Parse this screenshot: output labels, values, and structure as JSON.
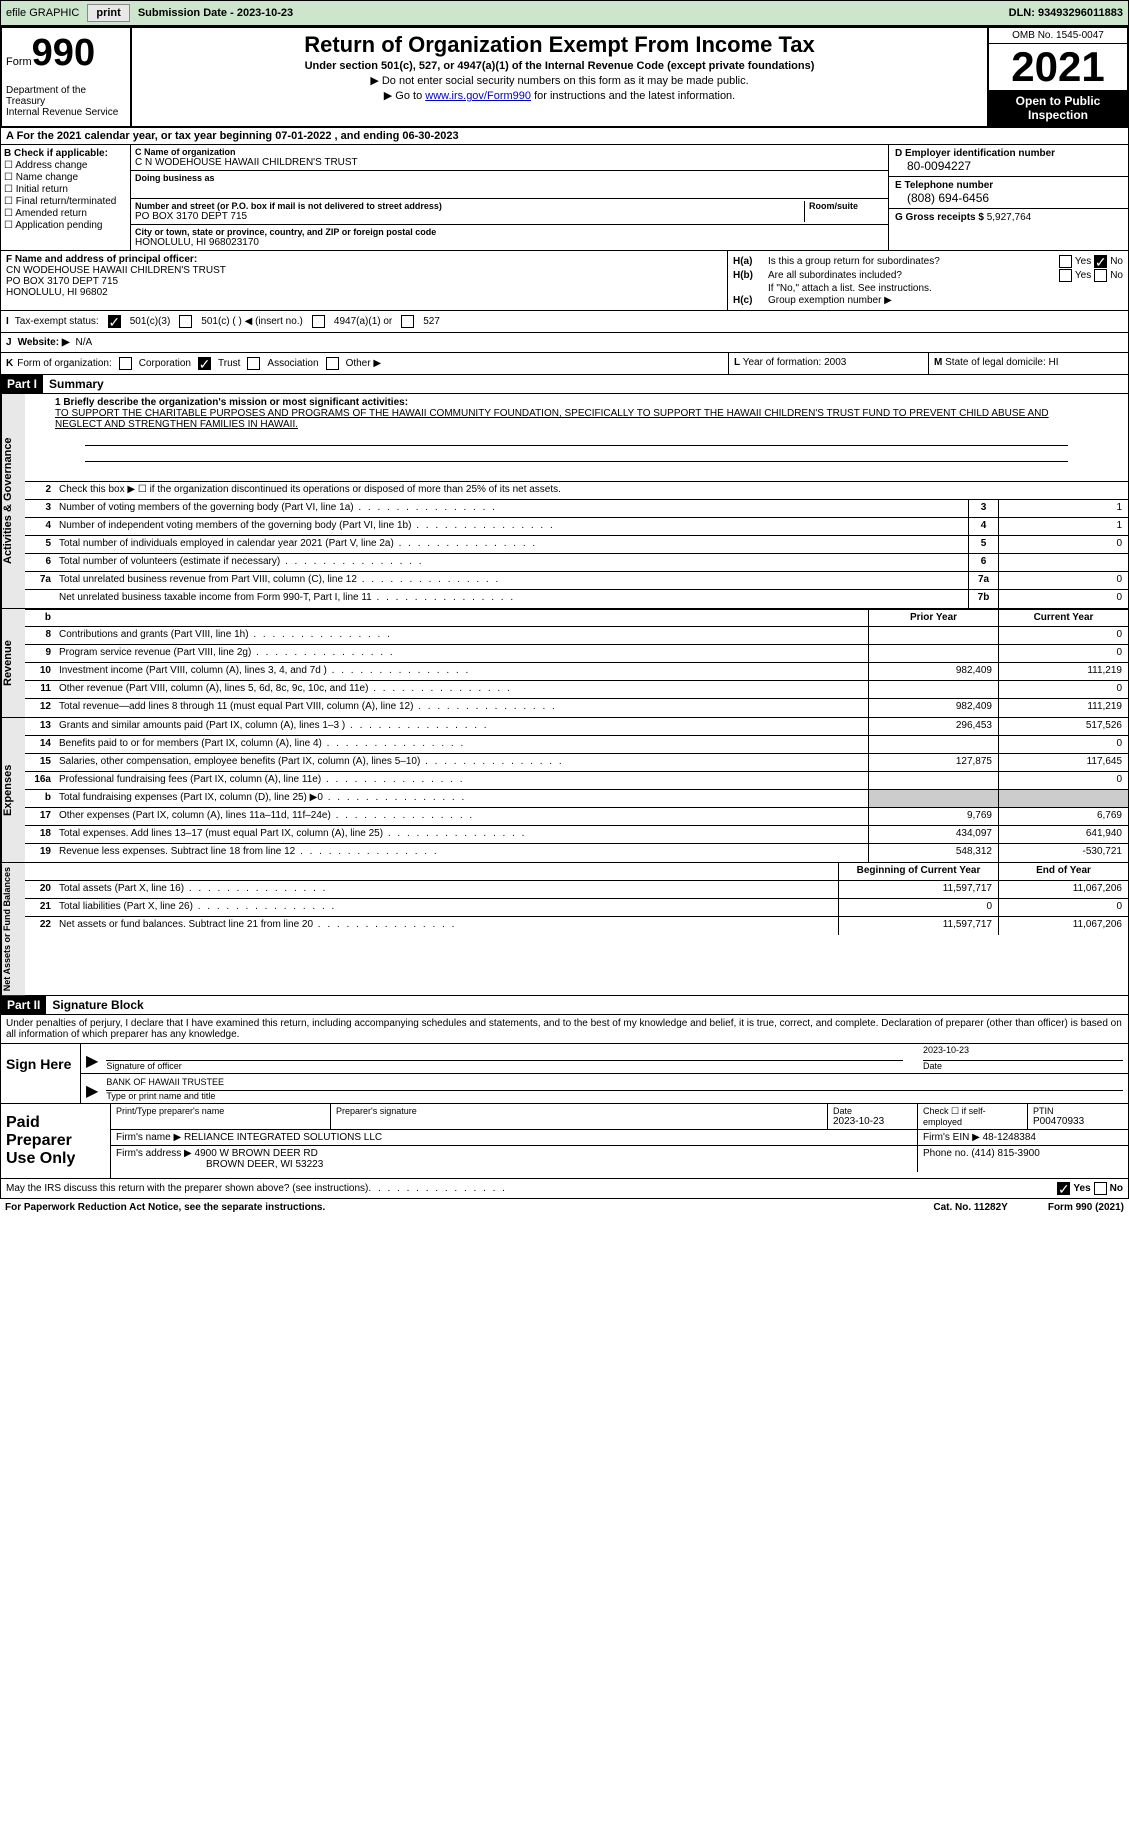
{
  "header_bar": {
    "efile": "efile GRAPHIC",
    "print": "print",
    "submission": "Submission Date - 2023-10-23",
    "dln": "DLN: 93493296011883"
  },
  "form_header": {
    "form_word": "Form",
    "form_num": "990",
    "dept": "Department of the Treasury\nInternal Revenue Service",
    "title": "Return of Organization Exempt From Income Tax",
    "subtitle": "Under section 501(c), 527, or 4947(a)(1) of the Internal Revenue Code (except private foundations)",
    "note1": "▶ Do not enter social security numbers on this form as it may be made public.",
    "note2_pre": "▶ Go to ",
    "note2_link": "www.irs.gov/Form990",
    "note2_post": " for instructions and the latest information.",
    "omb": "OMB No. 1545-0047",
    "year": "2021",
    "open": "Open to Public Inspection"
  },
  "line_a": "A For the 2021 calendar year, or tax year beginning 07-01-2022    , and ending 06-30-2023",
  "section_b": {
    "label": "B Check if applicable:",
    "opts": [
      "Address change",
      "Name change",
      "Initial return",
      "Final return/terminated",
      "Amended return",
      "Application pending"
    ]
  },
  "section_c": {
    "name_lbl": "C Name of organization",
    "name": "C N WODEHOUSE HAWAII CHILDREN'S TRUST",
    "dba_lbl": "Doing business as",
    "dba": "",
    "addr_lbl": "Number and street (or P.O. box if mail is not delivered to street address)",
    "room_lbl": "Room/suite",
    "addr": "PO BOX 3170 DEPT 715",
    "city_lbl": "City or town, state or province, country, and ZIP or foreign postal code",
    "city": "HONOLULU, HI  968023170"
  },
  "section_d": {
    "ein_lbl": "D Employer identification number",
    "ein": "80-0094227",
    "tel_lbl": "E Telephone number",
    "tel": "(808) 694-6456",
    "gross_lbl": "G Gross receipts $",
    "gross": "5,927,764"
  },
  "section_f": {
    "lbl": "F Name and address of principal officer:",
    "name": "CN WODEHOUSE HAWAII CHILDREN'S TRUST",
    "addr1": "PO BOX 3170 DEPT 715",
    "addr2": "HONOLULU, HI  96802"
  },
  "section_h": {
    "a_lbl": "H(a)",
    "a_txt": "Is this a group return for subordinates?",
    "b_lbl": "H(b)",
    "b_txt": "Are all subordinates included?",
    "b_note": "If \"No,\" attach a list. See instructions.",
    "c_lbl": "H(c)",
    "c_txt": "Group exemption number ▶",
    "yes": "Yes",
    "no": "No"
  },
  "line_i": {
    "lbl": "I",
    "txt": "Tax-exempt status:",
    "opts": [
      "501(c)(3)",
      "501(c) (  ) ◀ (insert no.)",
      "4947(a)(1) or",
      "527"
    ]
  },
  "line_j": {
    "lbl": "J",
    "txt": "Website: ▶",
    "val": "N/A"
  },
  "line_k": {
    "lbl": "K",
    "txt": "Form of organization:",
    "opts": [
      "Corporation",
      "Trust",
      "Association",
      "Other ▶"
    ]
  },
  "line_l": {
    "lbl": "L",
    "txt": "Year of formation:",
    "val": "2003"
  },
  "line_m": {
    "lbl": "M",
    "txt": "State of legal domicile:",
    "val": "HI"
  },
  "part1": {
    "tag": "Part I",
    "title": "Summary",
    "mission_lbl": "1    Briefly describe the organization's mission or most significant activities:",
    "mission": "TO SUPPORT THE CHARITABLE PURPOSES AND PROGRAMS OF THE HAWAII COMMUNITY FOUNDATION, SPECIFICALLY TO SUPPORT THE HAWAII CHILDREN'S TRUST FUND TO PREVENT CHILD ABUSE AND NEGLECT AND STRENGTHEN FAMILIES IN HAWAII.",
    "line2": "Check this box ▶ ☐ if the organization discontinued its operations or disposed of more than 25% of its net assets.",
    "side_act": "Activities & Governance",
    "side_rev": "Revenue",
    "side_exp": "Expenses",
    "side_net": "Net Assets or Fund Balances",
    "prior": "Prior Year",
    "current": "Current Year",
    "begin": "Beginning of Current Year",
    "end": "End of Year",
    "rows_gov": [
      {
        "n": "3",
        "t": "Number of voting members of the governing body (Part VI, line 1a)",
        "b": "3",
        "v": "1"
      },
      {
        "n": "4",
        "t": "Number of independent voting members of the governing body (Part VI, line 1b)",
        "b": "4",
        "v": "1"
      },
      {
        "n": "5",
        "t": "Total number of individuals employed in calendar year 2021 (Part V, line 2a)",
        "b": "5",
        "v": "0"
      },
      {
        "n": "6",
        "t": "Total number of volunteers (estimate if necessary)",
        "b": "6",
        "v": ""
      },
      {
        "n": "7a",
        "t": "Total unrelated business revenue from Part VIII, column (C), line 12",
        "b": "7a",
        "v": "0"
      },
      {
        "n": "",
        "t": "Net unrelated business taxable income from Form 990-T, Part I, line 11",
        "b": "7b",
        "v": "0"
      }
    ],
    "rows_rev": [
      {
        "n": "8",
        "t": "Contributions and grants (Part VIII, line 1h)",
        "p": "",
        "c": "0"
      },
      {
        "n": "9",
        "t": "Program service revenue (Part VIII, line 2g)",
        "p": "",
        "c": "0"
      },
      {
        "n": "10",
        "t": "Investment income (Part VIII, column (A), lines 3, 4, and 7d )",
        "p": "982,409",
        "c": "111,219"
      },
      {
        "n": "11",
        "t": "Other revenue (Part VIII, column (A), lines 5, 6d, 8c, 9c, 10c, and 11e)",
        "p": "",
        "c": "0"
      },
      {
        "n": "12",
        "t": "Total revenue—add lines 8 through 11 (must equal Part VIII, column (A), line 12)",
        "p": "982,409",
        "c": "111,219"
      }
    ],
    "rows_exp": [
      {
        "n": "13",
        "t": "Grants and similar amounts paid (Part IX, column (A), lines 1–3 )",
        "p": "296,453",
        "c": "517,526"
      },
      {
        "n": "14",
        "t": "Benefits paid to or for members (Part IX, column (A), line 4)",
        "p": "",
        "c": "0"
      },
      {
        "n": "15",
        "t": "Salaries, other compensation, employee benefits (Part IX, column (A), lines 5–10)",
        "p": "127,875",
        "c": "117,645"
      },
      {
        "n": "16a",
        "t": "Professional fundraising fees (Part IX, column (A), line 11e)",
        "p": "",
        "c": "0"
      },
      {
        "n": "b",
        "t": "Total fundraising expenses (Part IX, column (D), line 25) ▶0",
        "p": "shaded",
        "c": "shaded"
      },
      {
        "n": "17",
        "t": "Other expenses (Part IX, column (A), lines 11a–11d, 11f–24e)",
        "p": "9,769",
        "c": "6,769"
      },
      {
        "n": "18",
        "t": "Total expenses. Add lines 13–17 (must equal Part IX, column (A), line 25)",
        "p": "434,097",
        "c": "641,940"
      },
      {
        "n": "19",
        "t": "Revenue less expenses. Subtract line 18 from line 12",
        "p": "548,312",
        "c": "-530,721"
      }
    ],
    "rows_net": [
      {
        "n": "20",
        "t": "Total assets (Part X, line 16)",
        "p": "11,597,717",
        "c": "11,067,206"
      },
      {
        "n": "21",
        "t": "Total liabilities (Part X, line 26)",
        "p": "0",
        "c": "0"
      },
      {
        "n": "22",
        "t": "Net assets or fund balances. Subtract line 21 from line 20",
        "p": "11,597,717",
        "c": "11,067,206"
      }
    ]
  },
  "part2": {
    "tag": "Part II",
    "title": "Signature Block",
    "declare": "Under penalties of perjury, I declare that I have examined this return, including accompanying schedules and statements, and to the best of my knowledge and belief, it is true, correct, and complete. Declaration of preparer (other than officer) is based on all information of which preparer has any knowledge.",
    "sign_here": "Sign Here",
    "sig_officer": "Signature of officer",
    "sig_date": "2023-10-23",
    "date_lbl": "Date",
    "name_title": "BANK OF HAWAII TRUSTEE",
    "name_title_lbl": "Type or print name and title",
    "paid": "Paid Preparer Use Only",
    "prep_name_lbl": "Print/Type preparer's name",
    "prep_sig_lbl": "Preparer's signature",
    "prep_date_lbl": "Date",
    "prep_date": "2023-10-23",
    "check_if": "Check ☐ if self-employed",
    "ptin_lbl": "PTIN",
    "ptin": "P00470933",
    "firm_name_lbl": "Firm's name    ▶",
    "firm_name": "RELIANCE INTEGRATED SOLUTIONS LLC",
    "firm_ein_lbl": "Firm's EIN ▶",
    "firm_ein": "48-1248384",
    "firm_addr_lbl": "Firm's address ▶",
    "firm_addr1": "4900 W BROWN DEER RD",
    "firm_addr2": "BROWN DEER, WI  53223",
    "phone_lbl": "Phone no.",
    "phone": "(414) 815-3900",
    "discuss": "May the IRS discuss this return with the preparer shown above? (see instructions)"
  },
  "footer": {
    "paperwork": "For Paperwork Reduction Act Notice, see the separate instructions.",
    "cat": "Cat. No. 11282Y",
    "form": "Form 990 (2021)"
  }
}
